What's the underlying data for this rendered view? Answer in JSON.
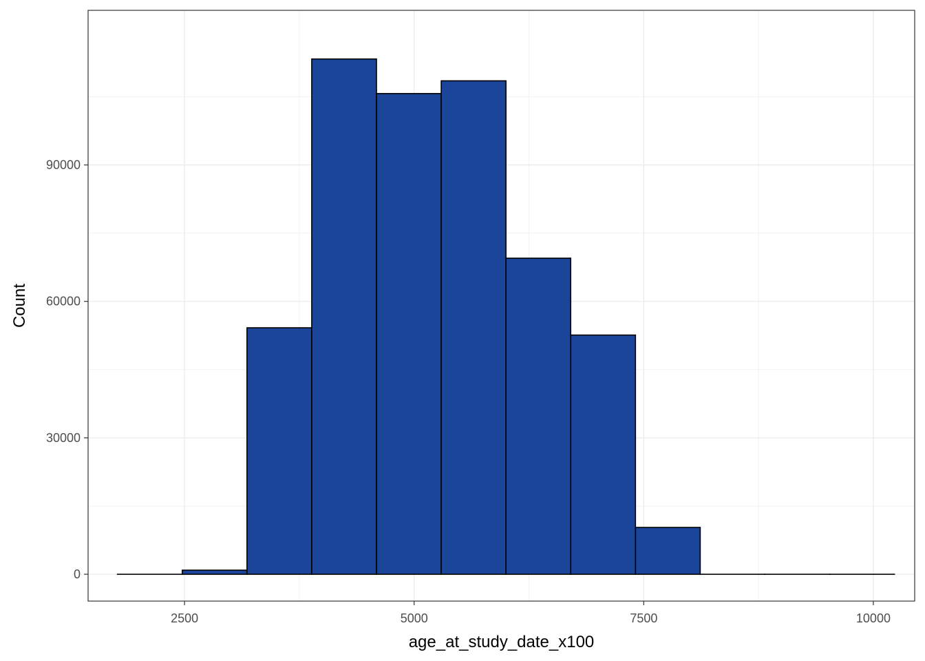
{
  "chart_data": {
    "type": "bar",
    "subtype": "histogram",
    "title": "",
    "xlabel": "age_at_study_date_x100",
    "ylabel": "Count",
    "xlim": [
      1450,
      10450
    ],
    "ylim": [
      -5900,
      124000
    ],
    "x_ticks": [
      2500,
      5000,
      7500,
      10000
    ],
    "y_ticks": [
      0,
      30000,
      60000,
      90000
    ],
    "x_minor_ticks": [
      3750,
      6250,
      8750
    ],
    "y_minor_ticks": [
      15000,
      45000,
      75000,
      105000
    ],
    "grid": true,
    "legend": "none",
    "fill_color": "#1a4599",
    "edge_color": "#000000",
    "bins": [
      {
        "x0": 1770,
        "x1": 2475,
        "count": 0
      },
      {
        "x0": 2475,
        "x1": 3180,
        "count": 900
      },
      {
        "x0": 3180,
        "x1": 3885,
        "count": 54200
      },
      {
        "x0": 3885,
        "x1": 4590,
        "count": 113300
      },
      {
        "x0": 4590,
        "x1": 5295,
        "count": 105700
      },
      {
        "x0": 5295,
        "x1": 6000,
        "count": 108500
      },
      {
        "x0": 6000,
        "x1": 6705,
        "count": 69500
      },
      {
        "x0": 6705,
        "x1": 7410,
        "count": 52600
      },
      {
        "x0": 7410,
        "x1": 8115,
        "count": 10300
      },
      {
        "x0": 8115,
        "x1": 8820,
        "count": 0
      },
      {
        "x0": 8820,
        "x1": 9525,
        "count": 0
      },
      {
        "x0": 9525,
        "x1": 10230,
        "count": 0
      }
    ]
  }
}
